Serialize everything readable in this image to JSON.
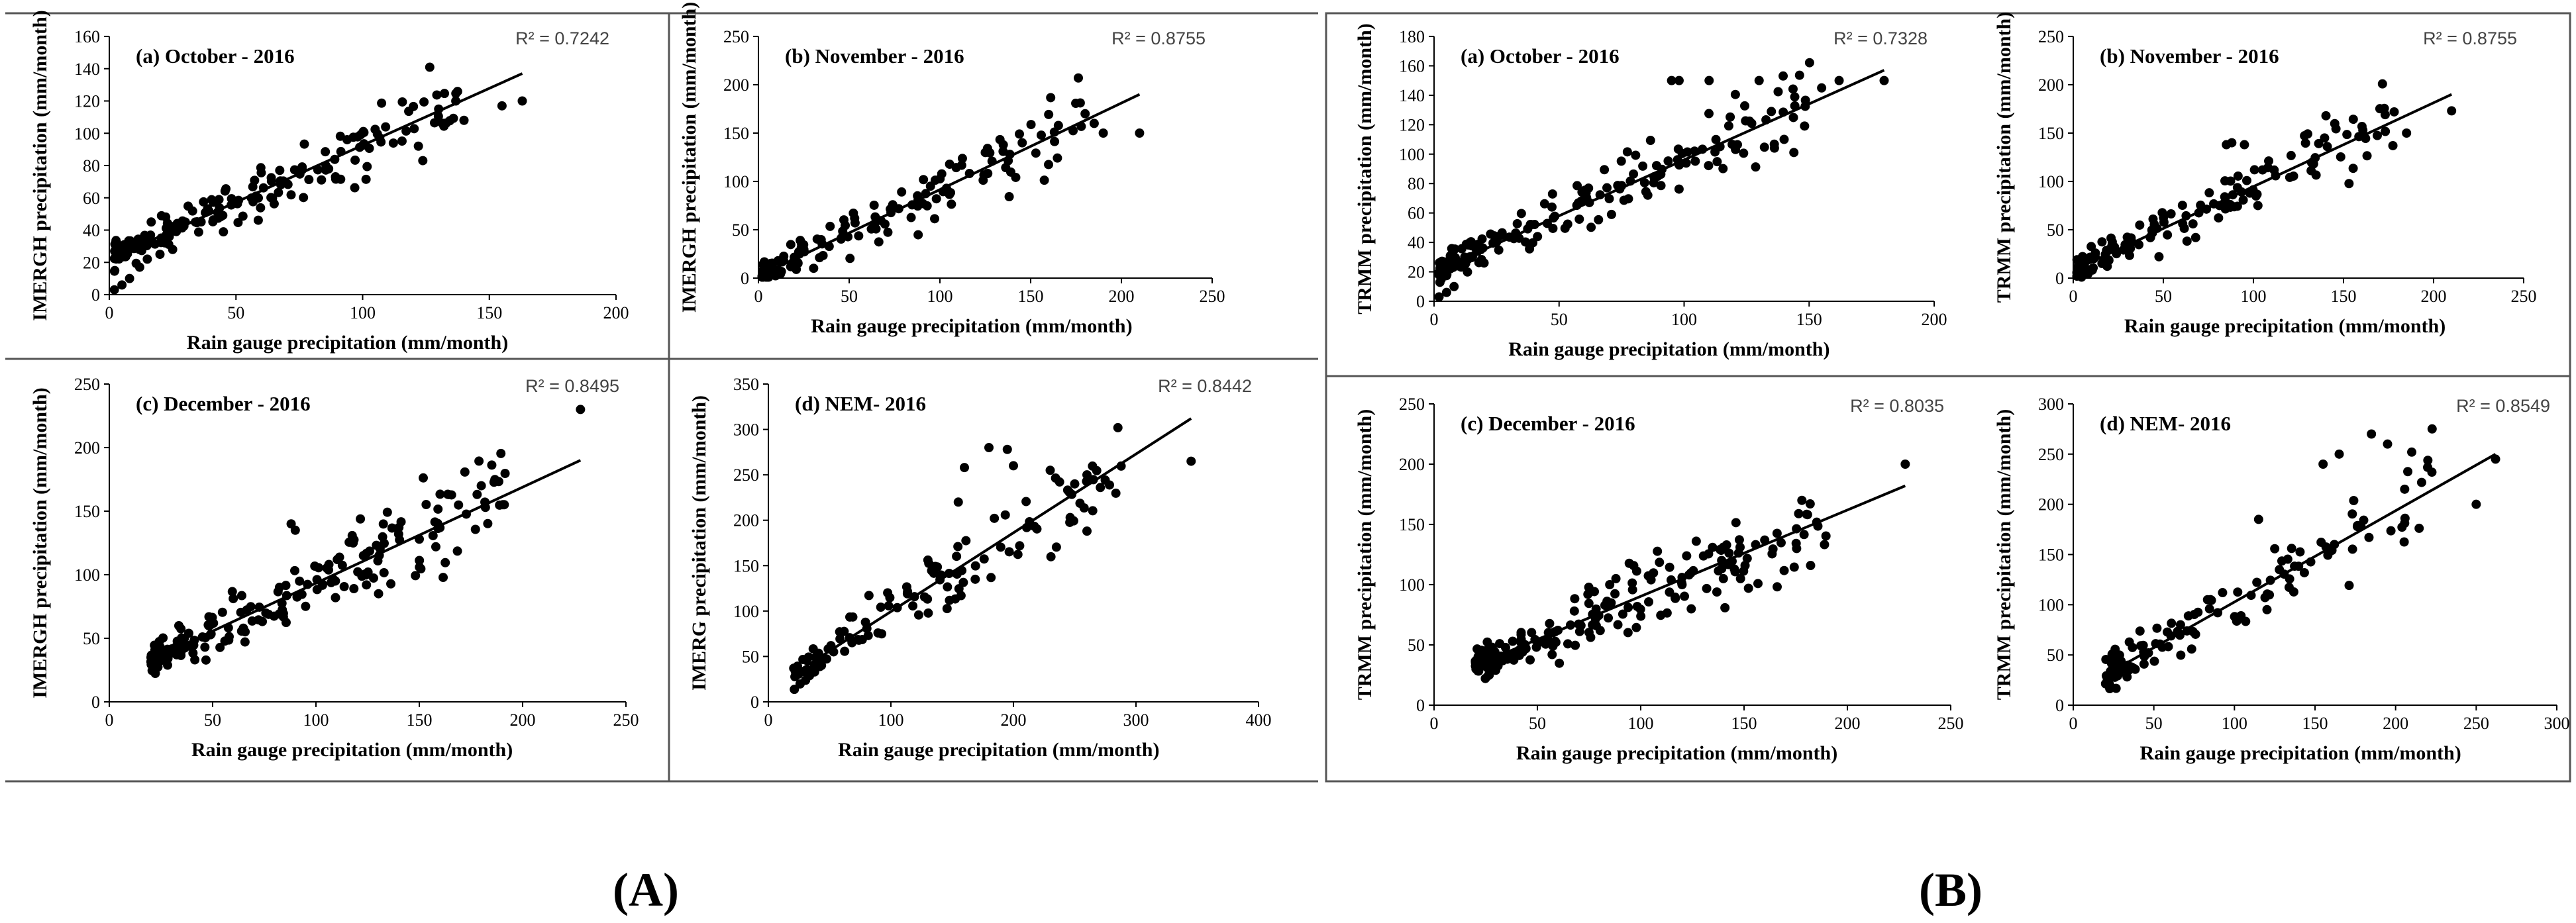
{
  "panel_labels": {
    "A": "(A)",
    "B": "(B)"
  },
  "chart_data": [
    {
      "id": "A-a",
      "type": "scatter",
      "title": "(a) October -  2016",
      "r2": "R² = 0.7242",
      "xlabel": "Rain gauge precipitation (mm/month)",
      "ylabel": "IMERGH precipitation (mm/month)",
      "xlim": [
        0,
        200
      ],
      "ylim": [
        0,
        160
      ],
      "xticks": [
        0,
        50,
        100,
        150,
        200
      ],
      "yticks": [
        0,
        20,
        40,
        60,
        80,
        100,
        120,
        140,
        160
      ],
      "fit": [
        [
          0,
          22
        ],
        [
          163,
          137
        ]
      ],
      "seed": 11,
      "n": 190,
      "extras": [
        [
          2,
          3
        ],
        [
          5,
          6
        ],
        [
          8,
          10
        ],
        [
          12,
          17
        ],
        [
          15,
          22
        ],
        [
          20,
          25
        ],
        [
          25,
          28
        ],
        [
          30,
          45
        ],
        [
          122,
          92
        ],
        [
          130,
          115
        ],
        [
          140,
          108
        ],
        [
          155,
          117
        ],
        [
          163,
          120
        ]
      ]
    },
    {
      "id": "A-b",
      "type": "scatter",
      "title": "(b) November -  2016",
      "r2": "R² = 0.8755",
      "xlabel": "Rain gauge precipitation (mm/month)",
      "ylabel": "IMERGH precipitation (mm/month)",
      "xlim": [
        0,
        250
      ],
      "ylim": [
        0,
        250
      ],
      "xticks": [
        0,
        50,
        100,
        150,
        200,
        250
      ],
      "yticks": [
        0,
        50,
        100,
        150,
        200,
        250
      ],
      "fit": [
        [
          0,
          2
        ],
        [
          210,
          190
        ]
      ],
      "seed": 22,
      "n": 150,
      "extras": [
        [
          2,
          2
        ],
        [
          4,
          5
        ],
        [
          6,
          6
        ],
        [
          180,
          170
        ],
        [
          185,
          160
        ],
        [
          190,
          150
        ],
        [
          210,
          150
        ]
      ]
    },
    {
      "id": "A-c",
      "type": "scatter",
      "title": "(c) December -  2016",
      "r2": "R² = 0.8495",
      "xlabel": "Rain gauge precipitation (mm/month)",
      "ylabel": "IMERGH precipitation (mm/month)",
      "xlim": [
        0,
        250
      ],
      "ylim": [
        0,
        250
      ],
      "xticks": [
        0,
        50,
        100,
        150,
        200,
        250
      ],
      "yticks": [
        0,
        50,
        100,
        150,
        200,
        250
      ],
      "fit": [
        [
          20,
          33
        ],
        [
          228,
          190
        ]
      ],
      "seed": 33,
      "n": 200,
      "extras": [
        [
          88,
          140
        ],
        [
          90,
          135
        ],
        [
          118,
          125
        ],
        [
          140,
          132
        ],
        [
          150,
          128
        ],
        [
          160,
          137
        ],
        [
          180,
          170
        ],
        [
          182,
          153
        ],
        [
          228,
          230
        ]
      ]
    },
    {
      "id": "A-d",
      "type": "scatter",
      "title": "(d) NEM-  2016",
      "r2": "R² = 0.8442",
      "xlabel": "Rain gauge precipitation (mm/month)",
      "ylabel": "IMERG precipitation (mm/month)",
      "xlim": [
        0,
        400
      ],
      "ylim": [
        0,
        350
      ],
      "xticks": [
        0,
        100,
        200,
        300,
        400
      ],
      "yticks": [
        0,
        50,
        100,
        150,
        200,
        250,
        300,
        350
      ],
      "fit": [
        [
          20,
          30
        ],
        [
          345,
          312
        ]
      ],
      "seed": 44,
      "n": 120,
      "extras": [
        [
          155,
          220
        ],
        [
          160,
          258
        ],
        [
          180,
          280
        ],
        [
          195,
          278
        ],
        [
          200,
          260
        ],
        [
          230,
          255
        ],
        [
          250,
          240
        ],
        [
          260,
          250
        ],
        [
          345,
          265
        ],
        [
          260,
          188
        ]
      ]
    },
    {
      "id": "B-a",
      "type": "scatter",
      "title": "(a) October -  2016",
      "r2": "R² = 0.7328",
      "xlabel": "Rain gauge precipitation (mm/month)",
      "ylabel": "TRMM precipitation (mm/month)",
      "xlim": [
        0,
        200
      ],
      "ylim": [
        0,
        180
      ],
      "xticks": [
        0,
        50,
        100,
        150,
        200
      ],
      "yticks": [
        0,
        20,
        40,
        60,
        80,
        100,
        120,
        140,
        160,
        180
      ],
      "fit": [
        [
          0,
          20
        ],
        [
          180,
          157
        ]
      ],
      "seed": 55,
      "n": 190,
      "extras": [
        [
          2,
          3
        ],
        [
          5,
          6
        ],
        [
          8,
          10
        ],
        [
          15,
          30
        ],
        [
          20,
          26
        ],
        [
          95,
          150
        ],
        [
          98,
          150
        ],
        [
          110,
          150
        ],
        [
          130,
          150
        ],
        [
          140,
          110
        ],
        [
          155,
          145
        ],
        [
          162,
          150
        ],
        [
          180,
          150
        ]
      ]
    },
    {
      "id": "B-b",
      "type": "scatter",
      "title": "(b) November -  2016",
      "r2": "R² = 0.8755",
      "xlabel": "Rain gauge precipitation (mm/month)",
      "ylabel": "TRMM precipitation (mm/month)",
      "xlim": [
        0,
        250
      ],
      "ylim": [
        0,
        250
      ],
      "xticks": [
        0,
        50,
        100,
        150,
        200,
        250
      ],
      "yticks": [
        0,
        50,
        100,
        150,
        200,
        250
      ],
      "fit": [
        [
          0,
          8
        ],
        [
          210,
          190
        ]
      ],
      "seed": 66,
      "n": 150,
      "extras": [
        [
          2,
          2
        ],
        [
          4,
          4
        ],
        [
          6,
          6
        ],
        [
          85,
          138
        ],
        [
          88,
          140
        ],
        [
          95,
          138
        ],
        [
          185,
          150
        ],
        [
          210,
          173
        ]
      ]
    },
    {
      "id": "B-c",
      "type": "scatter",
      "title": "(c) December -  2016",
      "r2": "R² = 0.8035",
      "xlabel": "Rain gauge precipitation (mm/month)",
      "ylabel": "TRMM precipitation (mm/month)",
      "xlim": [
        0,
        250
      ],
      "ylim": [
        0,
        250
      ],
      "xticks": [
        0,
        50,
        100,
        150,
        200,
        250
      ],
      "yticks": [
        0,
        50,
        100,
        150,
        200,
        250
      ],
      "fit": [
        [
          20,
          33
        ],
        [
          228,
          182
        ]
      ],
      "seed": 77,
      "n": 200,
      "extras": [
        [
          85,
          100
        ],
        [
          88,
          105
        ],
        [
          105,
          104
        ],
        [
          120,
          100
        ],
        [
          140,
          105
        ],
        [
          160,
          137
        ],
        [
          182,
          167
        ],
        [
          228,
          200
        ]
      ]
    },
    {
      "id": "B-d",
      "type": "scatter",
      "title": "(d) NEM-  2016",
      "r2": "R² = 0.8549",
      "xlabel": "Rain gauge precipitation (mm/month)",
      "ylabel": "TRMM precipitation (mm/month)",
      "xlim": [
        0,
        300
      ],
      "ylim": [
        0,
        300
      ],
      "xticks": [
        0,
        50,
        100,
        150,
        200,
        250,
        300
      ],
      "yticks": [
        0,
        50,
        100,
        150,
        200,
        250,
        300
      ],
      "fit": [
        [
          20,
          30
        ],
        [
          262,
          250
        ]
      ],
      "seed": 88,
      "n": 120,
      "extras": [
        [
          155,
          240
        ],
        [
          165,
          250
        ],
        [
          185,
          270
        ],
        [
          195,
          260
        ],
        [
          210,
          252
        ],
        [
          115,
          185
        ],
        [
          250,
          200
        ],
        [
          262,
          245
        ]
      ]
    }
  ]
}
